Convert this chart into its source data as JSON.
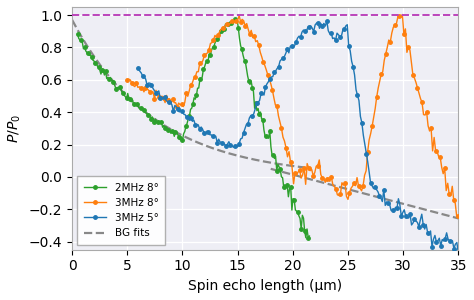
{
  "xlabel": "Spin echo length (μm)",
  "ylabel": "$P/P_0$",
  "xlim": [
    0,
    35
  ],
  "ylim": [
    -0.45,
    1.05
  ],
  "yticks": [
    -0.4,
    -0.2,
    0.0,
    0.2,
    0.4,
    0.6,
    0.8,
    1.0
  ],
  "xticks": [
    0,
    5,
    10,
    15,
    20,
    25,
    30,
    35
  ],
  "hline_y": 1.0,
  "hline_color": "#bb44bb",
  "hline_style": "--",
  "series": {
    "2MHz_8deg": {
      "label": "2MHz 8°",
      "color": "#2ca02c",
      "marker": "o",
      "markersize": 2.5,
      "linewidth": 1.0
    },
    "3MHz_8deg": {
      "label": "3MHz 8°",
      "color": "#ff7f0e",
      "marker": "o",
      "markersize": 2.5,
      "linewidth": 1.0
    },
    "3MHz_5deg": {
      "label": "3MHz 5°",
      "color": "#1f77b4",
      "marker": "o",
      "markersize": 2.5,
      "linewidth": 1.0
    },
    "bg_fits": {
      "label": "BG fits",
      "color": "#888888",
      "linestyle": "--",
      "linewidth": 1.6
    }
  },
  "legend_loc": "lower left",
  "legend_fontsize": 7.5,
  "figsize": [
    4.74,
    3.0
  ],
  "dpi": 100,
  "bg_color": "#eeeef5"
}
